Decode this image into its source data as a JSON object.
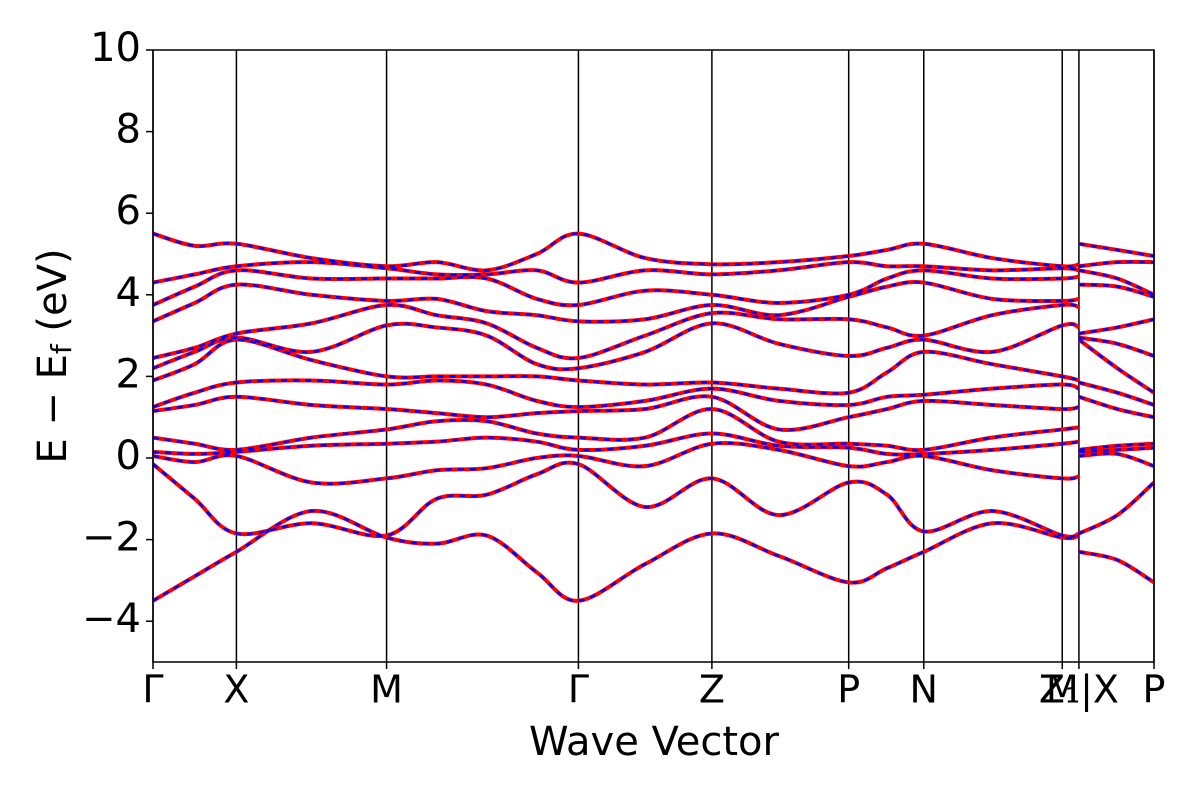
{
  "chart_data": {
    "type": "band-structure",
    "xlabel": "Wave Vector",
    "ylabel": [
      "E − E",
      "f",
      " (eV)"
    ],
    "line_colors": [
      "#ff0000",
      "#0000ff"
    ],
    "x": [
      0,
      0.25,
      0.5,
      0.95,
      1.4,
      1.7,
      2.0,
      2.3,
      2.55,
      2.95,
      3.35,
      3.75,
      4.17,
      4.4,
      4.62,
      5.03,
      5.45,
      5.55,
      5.55,
      5.55,
      5.78,
      6.0
    ],
    "xlim": [
      0,
      6.0
    ],
    "xticks": [
      {
        "value": 0,
        "label": "Γ"
      },
      {
        "value": 0.5,
        "label": "X"
      },
      {
        "value": 1.4,
        "label": "M"
      },
      {
        "value": 2.55,
        "label": "Γ"
      },
      {
        "value": 3.35,
        "label": "Z"
      },
      {
        "value": 4.17,
        "label": "P"
      },
      {
        "value": 4.62,
        "label": "N"
      },
      {
        "value": 5.45,
        "label": "M"
      },
      {
        "value": 5.55,
        "label": "Z₁|X"
      },
      {
        "value": 6.0,
        "label": "P"
      }
    ],
    "ylim": [
      -5,
      10
    ],
    "yticks": [
      {
        "value": -4,
        "label": "−4"
      },
      {
        "value": -2,
        "label": "−2"
      },
      0,
      2,
      4,
      6,
      8,
      10
    ],
    "series": [
      {
        "values": [
          -3.5,
          -2.9,
          -2.3,
          -1.3,
          -1.95,
          -2.1,
          -1.9,
          -2.8,
          -3.5,
          -2.6,
          -1.85,
          -2.4,
          -3.05,
          -2.7,
          -2.3,
          -1.6,
          -1.95,
          -1.9,
          null,
          -2.3,
          -2.5,
          -3.05
        ]
      },
      {
        "values": [
          -0.15,
          -1.0,
          -1.85,
          -1.6,
          -1.9,
          -1.0,
          -0.9,
          -0.4,
          -0.15,
          -1.2,
          -0.5,
          -1.4,
          -0.6,
          -0.9,
          -1.8,
          -1.3,
          -1.9,
          -1.85,
          null,
          -1.85,
          -1.4,
          -0.6
        ]
      },
      {
        "values": [
          0.05,
          -0.1,
          0.05,
          -0.6,
          -0.5,
          -0.3,
          -0.25,
          0.0,
          0.05,
          -0.2,
          0.35,
          0.2,
          -0.2,
          -0.1,
          0.05,
          -0.3,
          -0.5,
          -0.45,
          null,
          0.05,
          0.1,
          -0.2
        ]
      },
      {
        "values": [
          0.15,
          0.1,
          0.15,
          0.3,
          0.35,
          0.4,
          0.5,
          0.4,
          0.2,
          0.3,
          0.6,
          0.3,
          0.25,
          0.1,
          0.1,
          0.2,
          0.35,
          0.4,
          null,
          0.15,
          0.2,
          0.25
        ]
      },
      {
        "values": [
          0.5,
          0.35,
          0.2,
          0.5,
          0.7,
          0.9,
          0.9,
          0.6,
          0.5,
          0.5,
          1.2,
          0.4,
          0.35,
          0.3,
          0.2,
          0.5,
          0.7,
          0.75,
          null,
          0.2,
          0.3,
          0.35
        ]
      },
      {
        "values": [
          1.15,
          1.3,
          1.5,
          1.3,
          1.2,
          1.1,
          1.0,
          1.1,
          1.15,
          1.2,
          1.5,
          0.7,
          1.0,
          1.2,
          1.4,
          1.3,
          1.2,
          1.25,
          null,
          1.5,
          1.2,
          1.0
        ]
      },
      {
        "values": [
          1.25,
          1.6,
          1.85,
          1.9,
          1.8,
          1.9,
          1.8,
          1.4,
          1.25,
          1.4,
          1.7,
          1.4,
          1.3,
          1.5,
          1.55,
          1.7,
          1.8,
          1.7,
          null,
          1.85,
          1.6,
          1.3
        ]
      },
      {
        "values": [
          1.9,
          2.3,
          2.9,
          2.4,
          2.0,
          2.0,
          2.0,
          2.0,
          1.9,
          1.8,
          1.85,
          1.7,
          1.6,
          2.1,
          2.6,
          2.3,
          2.0,
          1.9,
          null,
          2.9,
          2.2,
          1.6
        ]
      },
      {
        "values": [
          2.2,
          2.6,
          2.95,
          2.6,
          3.25,
          3.2,
          3.0,
          2.3,
          2.2,
          2.6,
          3.3,
          2.8,
          2.5,
          2.7,
          2.9,
          2.6,
          3.25,
          3.2,
          null,
          2.95,
          2.8,
          2.5
        ]
      },
      {
        "values": [
          2.45,
          2.7,
          3.05,
          3.3,
          3.75,
          3.5,
          3.3,
          2.7,
          2.45,
          3.0,
          3.55,
          3.4,
          3.4,
          3.2,
          3.0,
          3.5,
          3.75,
          3.7,
          null,
          3.05,
          3.2,
          3.4
        ]
      },
      {
        "values": [
          3.35,
          3.8,
          4.25,
          4.0,
          3.85,
          3.9,
          3.6,
          3.5,
          3.35,
          3.4,
          3.75,
          3.5,
          3.95,
          4.2,
          4.3,
          3.9,
          3.85,
          3.9,
          null,
          4.25,
          4.2,
          3.95
        ]
      },
      {
        "values": [
          3.75,
          4.2,
          4.6,
          4.4,
          4.4,
          4.4,
          4.4,
          3.9,
          3.75,
          4.1,
          4.0,
          3.8,
          4.0,
          4.4,
          4.6,
          4.4,
          4.4,
          4.45,
          null,
          4.6,
          4.4,
          4.0
        ]
      },
      {
        "values": [
          4.3,
          4.5,
          4.7,
          4.8,
          4.65,
          4.5,
          4.5,
          4.6,
          4.3,
          4.6,
          4.5,
          4.6,
          4.8,
          4.7,
          4.7,
          4.6,
          4.65,
          4.6,
          null,
          4.7,
          4.8,
          4.8
        ]
      },
      {
        "values": [
          5.5,
          5.2,
          5.25,
          4.9,
          4.7,
          4.8,
          4.6,
          5.0,
          5.5,
          4.9,
          4.75,
          4.8,
          4.95,
          5.1,
          5.25,
          4.9,
          4.7,
          4.75,
          null,
          5.25,
          5.1,
          4.95
        ]
      }
    ]
  }
}
